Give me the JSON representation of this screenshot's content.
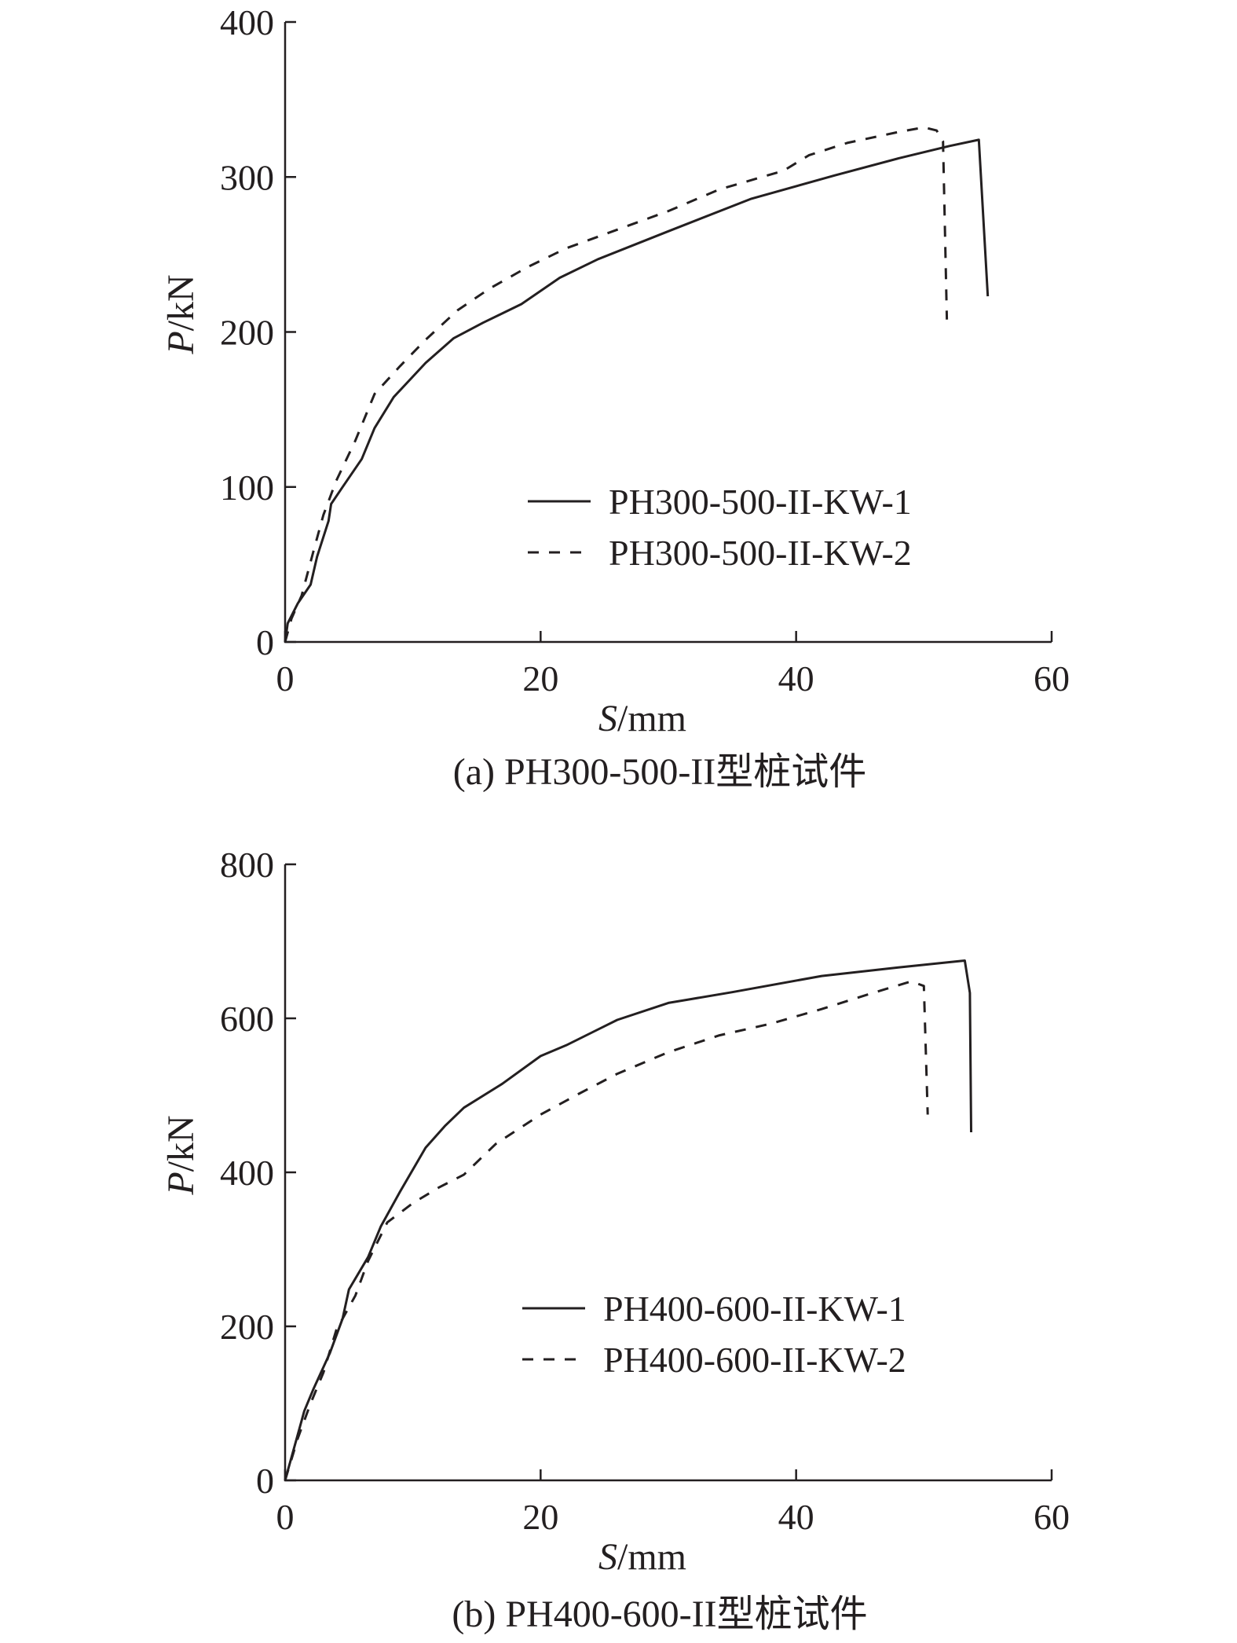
{
  "chart_data": [
    {
      "type": "line",
      "caption": "(a) PH300-500-II型桩试件",
      "xlabel_italic": "S",
      "xlabel_unit": "/mm",
      "ylabel_italic": "P",
      "ylabel_unit": "/kN",
      "xlim": [
        0,
        60
      ],
      "ylim": [
        0,
        400
      ],
      "xticks": [
        0,
        20,
        40,
        60
      ],
      "yticks": [
        0,
        100,
        200,
        300,
        400
      ],
      "grid": false,
      "legend_position": "lower-right",
      "series": [
        {
          "name": "PH300-500-II-KW-1",
          "style": "solid",
          "points": [
            [
              0,
              0
            ],
            [
              0.2,
              12
            ],
            [
              1,
              25
            ],
            [
              2,
              37
            ],
            [
              2.5,
              55
            ],
            [
              3.4,
              78
            ],
            [
              3.6,
              89
            ],
            [
              4.5,
              100
            ],
            [
              6,
              118
            ],
            [
              7,
              138
            ],
            [
              8.5,
              158
            ],
            [
              11,
              180
            ],
            [
              13.2,
              196
            ],
            [
              15.5,
              206
            ],
            [
              18.5,
              218
            ],
            [
              21.5,
              235
            ],
            [
              24.5,
              247
            ],
            [
              30,
              265
            ],
            [
              36.5,
              286
            ],
            [
              43,
              301
            ],
            [
              48,
              312
            ],
            [
              52,
              320
            ],
            [
              54.3,
              324
            ],
            [
              55,
              223
            ]
          ]
        },
        {
          "name": "PH300-500-II-KW-2",
          "style": "dashed",
          "points": [
            [
              0,
              0
            ],
            [
              0.5,
              15
            ],
            [
              1.3,
              30
            ],
            [
              2.2,
              58
            ],
            [
              3,
              82
            ],
            [
              4,
              104
            ],
            [
              5.5,
              130
            ],
            [
              7,
              160
            ],
            [
              9,
              178
            ],
            [
              11,
              195
            ],
            [
              13.5,
              214
            ],
            [
              16,
              228
            ],
            [
              19,
              242
            ],
            [
              22,
              254
            ],
            [
              26,
              266
            ],
            [
              30,
              278
            ],
            [
              34,
              292
            ],
            [
              39,
              304
            ],
            [
              41,
              314
            ],
            [
              44,
              322
            ],
            [
              48,
              329
            ],
            [
              50,
              332
            ],
            [
              51,
              330
            ],
            [
              51.5,
              323
            ],
            [
              51.8,
              208
            ]
          ]
        }
      ]
    },
    {
      "type": "line",
      "caption": "(b) PH400-600-II型桩试件",
      "xlabel_italic": "S",
      "xlabel_unit": "/mm",
      "ylabel_italic": "P",
      "ylabel_unit": "/kN",
      "xlim": [
        0,
        60
      ],
      "ylim": [
        0,
        800
      ],
      "xticks": [
        0,
        20,
        40,
        60
      ],
      "yticks": [
        0,
        200,
        400,
        600,
        800
      ],
      "grid": false,
      "legend_position": "lower-right",
      "series": [
        {
          "name": "PH400-600-II-KW-1",
          "style": "solid",
          "points": [
            [
              0,
              0
            ],
            [
              1,
              60
            ],
            [
              1.5,
              90
            ],
            [
              2.2,
              118
            ],
            [
              3.5,
              165
            ],
            [
              4.5,
              210
            ],
            [
              5,
              248
            ],
            [
              6.5,
              290
            ],
            [
              7.5,
              330
            ],
            [
              9,
              375
            ],
            [
              11,
              432
            ],
            [
              12.5,
              460
            ],
            [
              14,
              484
            ],
            [
              17,
              515
            ],
            [
              20,
              551
            ],
            [
              22,
              565
            ],
            [
              26,
              598
            ],
            [
              30,
              620
            ],
            [
              35,
              634
            ],
            [
              42,
              655
            ],
            [
              48,
              666
            ],
            [
              52,
              673
            ],
            [
              53.2,
              675
            ],
            [
              53.6,
              633
            ],
            [
              53.7,
              452
            ]
          ]
        },
        {
          "name": "PH400-600-II-KW-2",
          "style": "dashed",
          "points": [
            [
              0,
              0
            ],
            [
              1,
              55
            ],
            [
              2,
              100
            ],
            [
              3,
              140
            ],
            [
              4,
              195
            ],
            [
              5.5,
              240
            ],
            [
              6.5,
              285
            ],
            [
              8,
              335
            ],
            [
              10,
              360
            ],
            [
              12,
              380
            ],
            [
              14,
              397
            ],
            [
              16.5,
              437
            ],
            [
              20,
              475
            ],
            [
              23,
              502
            ],
            [
              26,
              528
            ],
            [
              30,
              556
            ],
            [
              34,
              578
            ],
            [
              38,
              593
            ],
            [
              42,
              612
            ],
            [
              46,
              633
            ],
            [
              48,
              643
            ],
            [
              49,
              648
            ],
            [
              50,
              642
            ],
            [
              50.3,
              475
            ]
          ]
        }
      ]
    }
  ]
}
